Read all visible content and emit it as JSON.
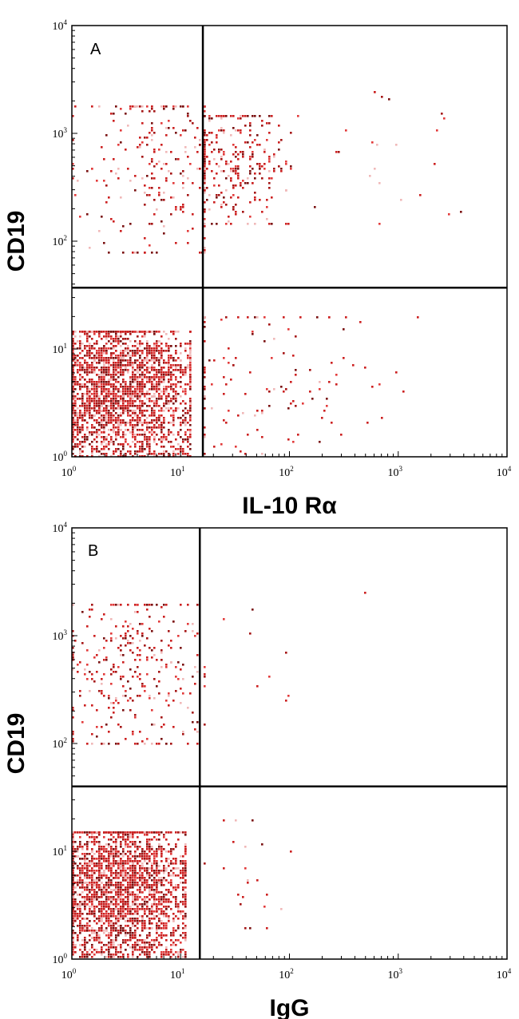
{
  "chart_data": [
    {
      "type": "scatter",
      "panel_label": "A",
      "xlabel": "IL-10 Rα",
      "ylabel": "CD19",
      "x_scale": "log",
      "y_scale": "log",
      "xlim": [
        1,
        10000
      ],
      "ylim": [
        1,
        10000
      ],
      "x_ticks": [
        {
          "base": "10",
          "exp": "0"
        },
        {
          "base": "10",
          "exp": "1"
        },
        {
          "base": "10",
          "exp": "2"
        },
        {
          "base": "10",
          "exp": "3"
        },
        {
          "base": "10",
          "exp": "4"
        }
      ],
      "y_ticks": [
        {
          "base": "10",
          "exp": "0"
        },
        {
          "base": "10",
          "exp": "1"
        },
        {
          "base": "10",
          "exp": "2"
        },
        {
          "base": "10",
          "exp": "3"
        },
        {
          "base": "10",
          "exp": "4"
        }
      ],
      "gates": {
        "x": 16,
        "y": 37
      },
      "point_color": "#cc1f1f",
      "populations": [
        {
          "region": "lower-left",
          "x_range": [
            1,
            12
          ],
          "y_range": [
            1,
            15
          ],
          "x_center": 2.6,
          "y_center": 5,
          "count": 2600,
          "density": "very high"
        },
        {
          "region": "upper-left",
          "x_range": [
            1,
            16
          ],
          "y_range": [
            80,
            1800
          ],
          "x_center": 7,
          "y_center": 550,
          "count": 260,
          "density": "medium"
        },
        {
          "region": "upper-right",
          "x_range": [
            16,
            120
          ],
          "y_range": [
            150,
            1500
          ],
          "x_center": 30,
          "y_center": 550,
          "count": 280,
          "density": "medium"
        },
        {
          "region": "upper-right-scattered",
          "x_range": [
            100,
            6000
          ],
          "y_range": [
            150,
            2500
          ],
          "x_center": 800,
          "y_center": 700,
          "count": 25,
          "density": "sparse"
        },
        {
          "region": "lower-right",
          "x_range": [
            16,
            1500
          ],
          "y_range": [
            1,
            20
          ],
          "x_center": 60,
          "y_center": 6,
          "count": 130,
          "density": "sparse"
        }
      ]
    },
    {
      "type": "scatter",
      "panel_label": "B",
      "xlabel": "IgG",
      "ylabel": "CD19",
      "x_scale": "log",
      "y_scale": "log",
      "xlim": [
        1,
        10000
      ],
      "ylim": [
        1,
        10000
      ],
      "x_ticks": [
        {
          "base": "10",
          "exp": "0"
        },
        {
          "base": "10",
          "exp": "1"
        },
        {
          "base": "10",
          "exp": "2"
        },
        {
          "base": "10",
          "exp": "3"
        },
        {
          "base": "10",
          "exp": "4"
        }
      ],
      "y_ticks": [
        {
          "base": "10",
          "exp": "0"
        },
        {
          "base": "10",
          "exp": "1"
        },
        {
          "base": "10",
          "exp": "2"
        },
        {
          "base": "10",
          "exp": "3"
        },
        {
          "base": "10",
          "exp": "4"
        }
      ],
      "gates": {
        "x": 15,
        "y": 40
      },
      "point_color": "#cc1f1f",
      "populations": [
        {
          "region": "lower-left",
          "x_range": [
            1,
            11
          ],
          "y_range": [
            1,
            15
          ],
          "x_center": 2.5,
          "y_center": 5,
          "count": 2600,
          "density": "very high"
        },
        {
          "region": "upper-left",
          "x_range": [
            1,
            14
          ],
          "y_range": [
            100,
            2000
          ],
          "x_center": 3.5,
          "y_center": 550,
          "count": 320,
          "density": "medium"
        },
        {
          "region": "upper-right",
          "x_range": [
            16,
            2500
          ],
          "y_range": [
            150,
            2500
          ],
          "x_center": 30,
          "y_center": 800,
          "count": 14,
          "density": "very sparse"
        },
        {
          "region": "lower-right",
          "x_range": [
            16,
            100
          ],
          "y_range": [
            2,
            20
          ],
          "x_center": 30,
          "y_center": 6,
          "count": 22,
          "density": "very sparse"
        }
      ]
    }
  ]
}
